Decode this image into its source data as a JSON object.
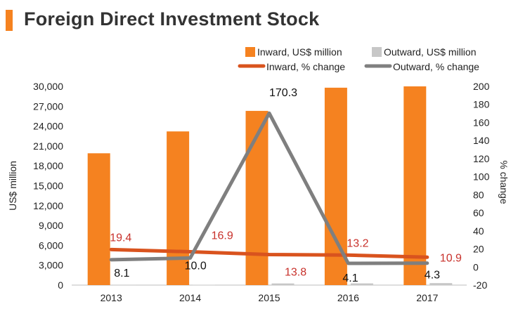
{
  "title": "Foreign Direct Investment Stock",
  "chart_data": {
    "type": "bar+line",
    "title": "Foreign Direct Investment Stock",
    "categories": [
      "2013",
      "2014",
      "2015",
      "2016",
      "2017"
    ],
    "bar_series": [
      {
        "name": "Inward, US$ million",
        "color": "#f58220",
        "values": [
          19900,
          23200,
          26300,
          29800,
          30000
        ]
      },
      {
        "name": "Outward, US$ million",
        "color": "#c7c7c7",
        "values": [
          30,
          35,
          250,
          260,
          300
        ]
      }
    ],
    "line_series": [
      {
        "name": "Inward, % change",
        "color": "#d9531e",
        "values": [
          19.4,
          16.9,
          13.8,
          13.2,
          10.9
        ],
        "labels": [
          "19.4",
          "16.9",
          "13.8",
          "13.2",
          "10.9"
        ]
      },
      {
        "name": "Outward, % change",
        "color": "#7f7f7f",
        "values": [
          8.1,
          10.0,
          170.3,
          4.1,
          4.3
        ],
        "labels": [
          "8.1",
          "10.0",
          "170.3",
          "4.1",
          "4.3"
        ]
      }
    ],
    "y_left": {
      "label": "US$ million",
      "ylim": [
        0,
        30000
      ],
      "ticks": [
        "0",
        "3,000",
        "6,000",
        "9,000",
        "12,000",
        "15,000",
        "18,000",
        "21,000",
        "24,000",
        "27,000",
        "30,000"
      ]
    },
    "y_right": {
      "label": "% change",
      "ylim": [
        -20,
        200
      ],
      "ticks": [
        "-20",
        "0",
        "20",
        "40",
        "60",
        "80",
        "100",
        "120",
        "140",
        "160",
        "180",
        "200"
      ]
    },
    "legend": "top-right",
    "grid": false
  }
}
